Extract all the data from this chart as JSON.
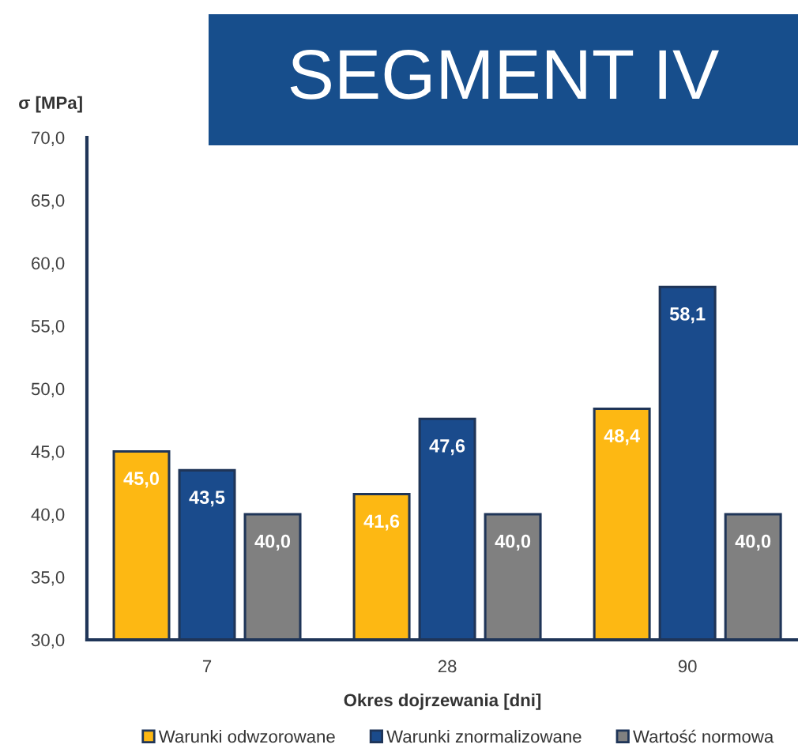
{
  "chart_data": {
    "type": "bar",
    "title": "SEGMENT IV",
    "xlabel": "Okres dojrzewania [dni]",
    "ylabel": "σ [MPa]",
    "categories": [
      "7",
      "28",
      "90"
    ],
    "series": [
      {
        "name": "Warunki odwzorowane",
        "color": "#fdb813",
        "values": [
          45.0,
          41.6,
          48.4
        ],
        "value_labels": [
          "45,0",
          "41,6",
          "48,4"
        ]
      },
      {
        "name": "Warunki znormalizowane",
        "color": "#1a4b8c",
        "values": [
          43.5,
          47.6,
          58.1
        ],
        "value_labels": [
          "43,5",
          "47,6",
          "58,1"
        ]
      },
      {
        "name": "Wartość normowa",
        "color": "#808080",
        "values": [
          40.0,
          40.0,
          40.0
        ],
        "value_labels": [
          "40,0",
          "40,0",
          "40,0"
        ]
      }
    ],
    "ylim": [
      30,
      70
    ],
    "yticks": [
      {
        "value": 30,
        "label": "30,0"
      },
      {
        "value": 35,
        "label": "35,0"
      },
      {
        "value": 40,
        "label": "40,0"
      },
      {
        "value": 45,
        "label": "45,0"
      },
      {
        "value": 50,
        "label": "50,0"
      },
      {
        "value": 55,
        "label": "55,0"
      },
      {
        "value": 60,
        "label": "60,0"
      },
      {
        "value": 65,
        "label": "65,0"
      },
      {
        "value": 70,
        "label": "70,0"
      }
    ],
    "grid": false,
    "legend": "bottom"
  }
}
